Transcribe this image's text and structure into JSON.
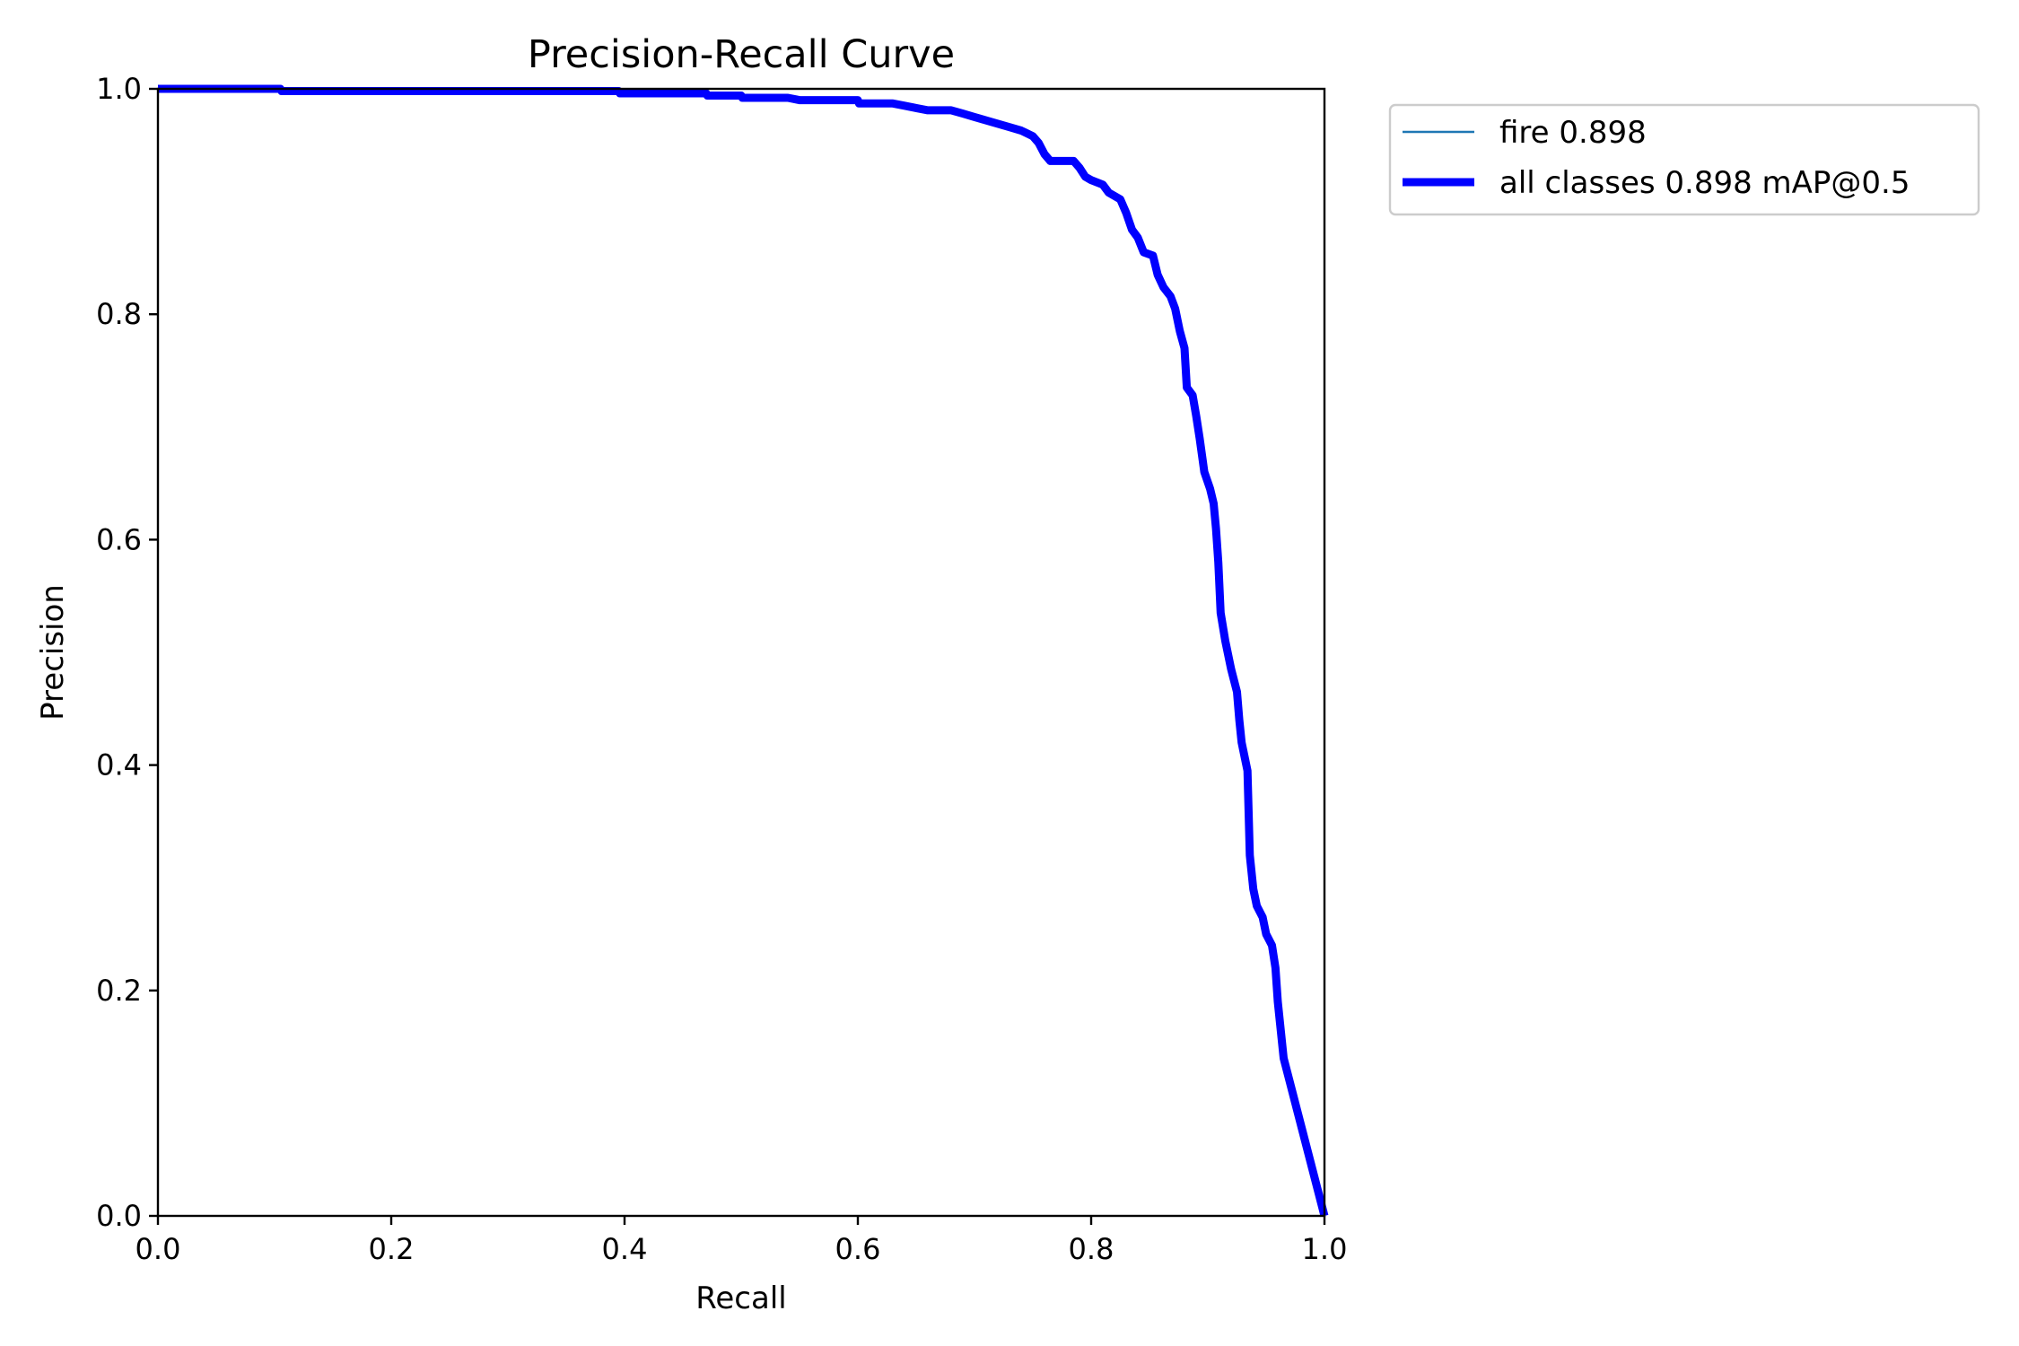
{
  "chart_data": {
    "type": "line",
    "title": "Precision-Recall Curve",
    "xlabel": "Recall",
    "ylabel": "Precision",
    "xlim": [
      0,
      1
    ],
    "ylim": [
      0,
      1
    ],
    "xticks": [
      "0.0",
      "0.2",
      "0.4",
      "0.6",
      "0.8",
      "1.0"
    ],
    "yticks": [
      "0.0",
      "0.2",
      "0.4",
      "0.6",
      "0.8",
      "1.0"
    ],
    "grid": false,
    "legend_position": "outside-top-right",
    "series": [
      {
        "name": "fire 0.898",
        "color": "#1f77b4",
        "line_style": "thin",
        "points": [
          [
            0.0,
            1.0
          ],
          [
            0.105,
            1.0
          ],
          [
            0.106,
            0.998
          ],
          [
            0.395,
            0.998
          ],
          [
            0.396,
            0.996
          ],
          [
            0.47,
            0.996
          ],
          [
            0.471,
            0.994
          ],
          [
            0.5,
            0.994
          ],
          [
            0.501,
            0.992
          ],
          [
            0.54,
            0.992
          ],
          [
            0.55,
            0.99
          ],
          [
            0.6,
            0.99
          ],
          [
            0.601,
            0.987
          ],
          [
            0.63,
            0.987
          ],
          [
            0.64,
            0.985
          ],
          [
            0.65,
            0.983
          ],
          [
            0.66,
            0.981
          ],
          [
            0.68,
            0.981
          ],
          [
            0.69,
            0.978
          ],
          [
            0.7,
            0.975
          ],
          [
            0.71,
            0.972
          ],
          [
            0.72,
            0.969
          ],
          [
            0.73,
            0.966
          ],
          [
            0.74,
            0.963
          ],
          [
            0.75,
            0.958
          ],
          [
            0.755,
            0.952
          ],
          [
            0.76,
            0.942
          ],
          [
            0.765,
            0.936
          ],
          [
            0.785,
            0.936
          ],
          [
            0.79,
            0.93
          ],
          [
            0.795,
            0.922
          ],
          [
            0.8,
            0.919
          ],
          [
            0.81,
            0.915
          ],
          [
            0.815,
            0.908
          ],
          [
            0.825,
            0.902
          ],
          [
            0.83,
            0.89
          ],
          [
            0.835,
            0.875
          ],
          [
            0.84,
            0.868
          ],
          [
            0.845,
            0.855
          ],
          [
            0.853,
            0.852
          ],
          [
            0.857,
            0.835
          ],
          [
            0.862,
            0.824
          ],
          [
            0.868,
            0.816
          ],
          [
            0.872,
            0.805
          ],
          [
            0.876,
            0.785
          ],
          [
            0.88,
            0.77
          ],
          [
            0.882,
            0.735
          ],
          [
            0.887,
            0.728
          ],
          [
            0.89,
            0.71
          ],
          [
            0.893,
            0.69
          ],
          [
            0.897,
            0.66
          ],
          [
            0.902,
            0.645
          ],
          [
            0.905,
            0.632
          ],
          [
            0.907,
            0.61
          ],
          [
            0.909,
            0.58
          ],
          [
            0.911,
            0.535
          ],
          [
            0.915,
            0.51
          ],
          [
            0.92,
            0.485
          ],
          [
            0.925,
            0.465
          ],
          [
            0.927,
            0.44
          ],
          [
            0.929,
            0.42
          ],
          [
            0.932,
            0.405
          ],
          [
            0.934,
            0.395
          ],
          [
            0.936,
            0.32
          ],
          [
            0.939,
            0.29
          ],
          [
            0.942,
            0.275
          ],
          [
            0.947,
            0.265
          ],
          [
            0.95,
            0.25
          ],
          [
            0.955,
            0.24
          ],
          [
            0.958,
            0.22
          ],
          [
            0.96,
            0.19
          ],
          [
            0.962,
            0.17
          ],
          [
            0.965,
            0.14
          ],
          [
            1.0,
            0.0
          ]
        ]
      },
      {
        "name": "all classes 0.898 mAP@0.5",
        "color": "#0000ff",
        "line_style": "thick",
        "points": "same-as-fire"
      }
    ]
  }
}
